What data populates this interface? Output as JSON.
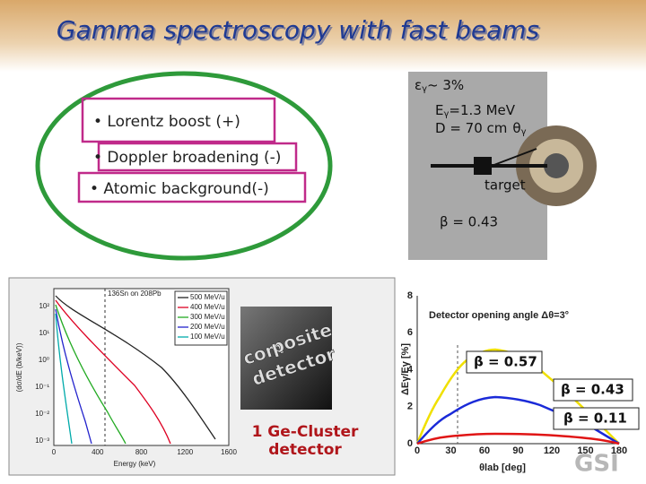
{
  "title": "Gamma spectroscopy with fast beams",
  "bullets": [
    "• Lorentz boost (+)",
    "• Doppler broadening (-)",
    "• Atomic background(-)"
  ],
  "setup": {
    "efficiency": {
      "symbol": "ε",
      "sub": "γ",
      "text": "~ 3%"
    },
    "energy": {
      "symbol": "E",
      "sub": "γ",
      "text": "=1.3 MeV"
    },
    "distance": {
      "text": "D = 70 cm",
      "symbol": "θ",
      "sub": "γ"
    },
    "target": "target",
    "beta": "β = 0.43"
  },
  "spectrum": {
    "reaction": "136Sn on 208Pb",
    "legend": [
      "500 MeV/u",
      "400 MeV/u",
      "300 MeV/u",
      "200 MeV/u",
      "100 MeV/u"
    ],
    "ylabel": "(dσ/dE (b/keV))",
    "xlabel": "Energy (keV)",
    "xticks": [
      "0",
      "400",
      "800",
      "1200",
      "1600"
    ],
    "yticks": [
      "10²",
      "10¹",
      "10⁰",
      "10⁻¹",
      "10⁻²",
      "10⁻³"
    ],
    "photo_text": [
      "com",
      "posite",
      "detector"
    ],
    "caption": [
      "1 Ge-Cluster",
      "detector"
    ]
  },
  "resolution": {
    "title": "Detector opening angle Δθ=3°",
    "ylabel": "ΔEγ/Eγ [%]",
    "xlabel": "θlab [deg]",
    "yticks": [
      "0",
      "2",
      "4",
      "6",
      "8"
    ],
    "xticks": [
      "0",
      "30",
      "60",
      "90",
      "120",
      "150",
      "180"
    ],
    "labels": [
      "β = 0.57",
      "β = 0.43",
      "β = 0.11"
    ],
    "logo": "GSI"
  }
}
